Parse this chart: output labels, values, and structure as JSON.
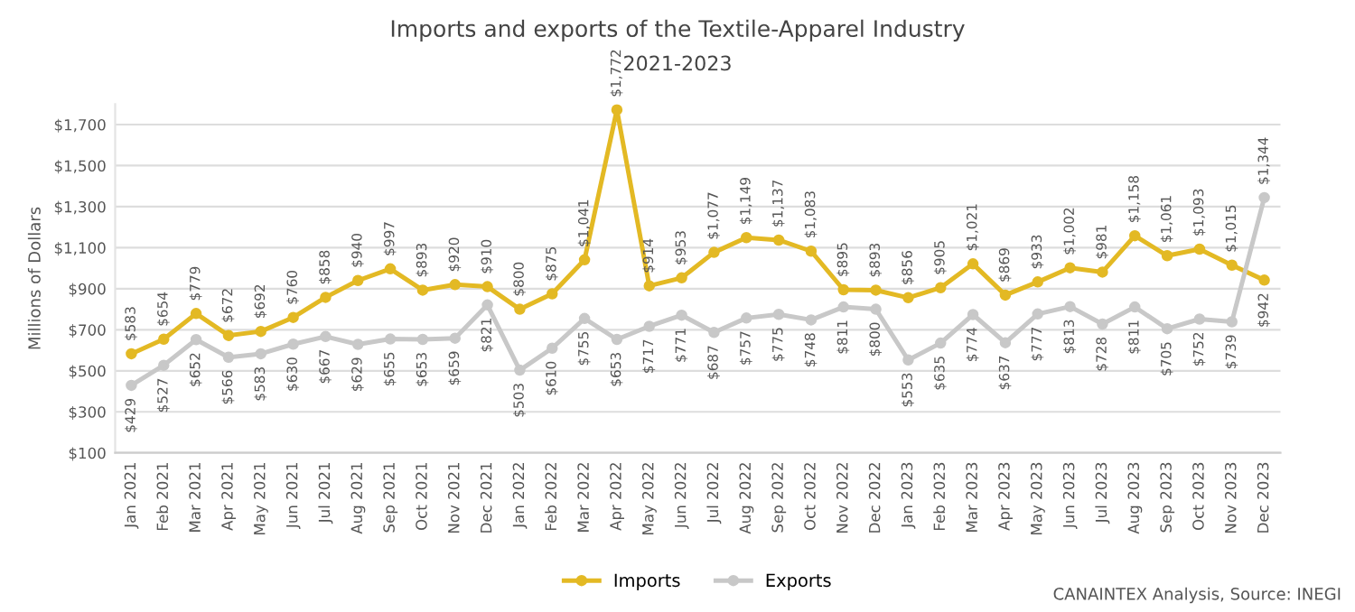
{
  "chart_data": {
    "type": "line",
    "title": "Imports and exports of the Textile-Apparel Industry",
    "subtitle": "2021-2023",
    "ylabel": "Millions of Dollars",
    "categories": [
      "Jan 2021",
      "Feb 2021",
      "Mar 2021",
      "Apr 2021",
      "May 2021",
      "Jun 2021",
      "Jul 2021",
      "Aug 2021",
      "Sep 2021",
      "Oct 2021",
      "Nov 2021",
      "Dec 2021",
      "Jan 2022",
      "Feb 2022",
      "Mar 2022",
      "Apr 2022",
      "May 2022",
      "Jun 2022",
      "Jul 2022",
      "Aug 2022",
      "Sep 2022",
      "Oct 2022",
      "Nov 2022",
      "Dec 2022",
      "Jan 2023",
      "Feb 2023",
      "Mar 2023",
      "Apr 2023",
      "May 2023",
      "Jun 2023",
      "Jul 2023",
      "Aug 2023",
      "Sep 2023",
      "Oct 2023",
      "Nov 2023",
      "Dec 2023"
    ],
    "series": [
      {
        "name": "Imports",
        "color": "#e3b924",
        "values": [
          583,
          654,
          779,
          672,
          692,
          760,
          858,
          940,
          997,
          893,
          920,
          910,
          800,
          875,
          1041,
          1772,
          914,
          953,
          1077,
          1149,
          1137,
          1083,
          895,
          893,
          856,
          905,
          1021,
          869,
          933,
          1002,
          981,
          1158,
          1061,
          1093,
          1015,
          942
        ],
        "value_labels": [
          "$583",
          "$654",
          "$779",
          "$672",
          "$692",
          "$760",
          "$858",
          "$940",
          "$997",
          "$893",
          "$920",
          "$910",
          "$800",
          "$875",
          "$1,041",
          "$1,772",
          "$914",
          "$953",
          "$1,077",
          "$1,149",
          "$1,137",
          "$1,083",
          "$895",
          "$893",
          "$856",
          "$905",
          "$1,021",
          "$869",
          "$933",
          "$1,002",
          "$981",
          "$1,158",
          "$1,061",
          "$1,093",
          "$1,015",
          "$942"
        ]
      },
      {
        "name": "Exports",
        "color": "#c8c8c8",
        "values": [
          429,
          527,
          652,
          566,
          583,
          630,
          667,
          629,
          655,
          653,
          659,
          821,
          503,
          610,
          755,
          653,
          717,
          771,
          687,
          757,
          775,
          748,
          811,
          800,
          553,
          635,
          774,
          637,
          777,
          813,
          728,
          811,
          705,
          752,
          739,
          1344
        ],
        "value_labels": [
          "$429",
          "$527",
          "$652",
          "$566",
          "$583",
          "$630",
          "$667",
          "$629",
          "$655",
          "$653",
          "$659",
          "$821",
          "$503",
          "$610",
          "$755",
          "$653",
          "$717",
          "$771",
          "$687",
          "$757",
          "$775",
          "$748",
          "$811",
          "$800",
          "$553",
          "$635",
          "$774",
          "$637",
          "$777",
          "$813",
          "$728",
          "$811",
          "$705",
          "$752",
          "$739",
          "$1,344"
        ]
      }
    ],
    "ylim": [
      100,
      1800
    ],
    "yticks": [
      {
        "value": 100,
        "label": "$100"
      },
      {
        "value": 300,
        "label": "$300"
      },
      {
        "value": 500,
        "label": "$500"
      },
      {
        "value": 700,
        "label": "$700"
      },
      {
        "value": 900,
        "label": "$900"
      },
      {
        "value": 1100,
        "label": "$1,100"
      },
      {
        "value": 1300,
        "label": "$1,300"
      },
      {
        "value": 1500,
        "label": "$1,500"
      },
      {
        "value": 1700,
        "label": "$1,700"
      }
    ],
    "grid": "y",
    "legend": "bottom",
    "marker": "circle",
    "line_style": "solid",
    "annotations": [
      "CANAINTEX Analysis, Source: INEGI"
    ]
  }
}
